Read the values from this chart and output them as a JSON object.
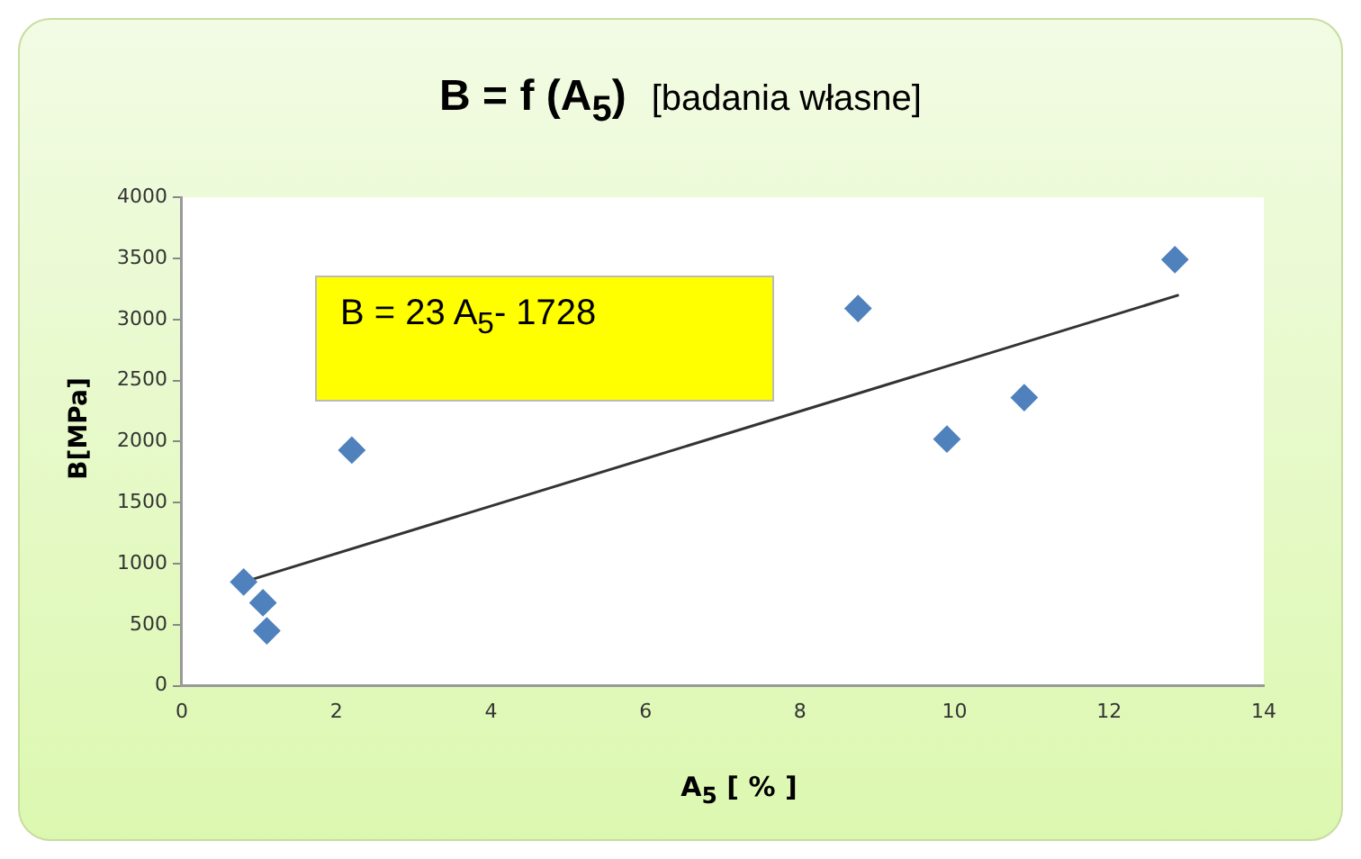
{
  "chart_data": {
    "type": "scatter",
    "title": "B = f (A$_{5}$)",
    "subtitle": "[badania własne]",
    "xlabel": "A$_{5}$ [ % ]",
    "ylabel": "B[MPa]",
    "annotations": [
      "B = 23 A$_{5}$- 1728"
    ],
    "series": [
      {
        "color": "#4f81bd",
        "marker": "diamond",
        "x": [
          0.8,
          1.05,
          1.1,
          2.2,
          8.75,
          9.9,
          10.9,
          12.85
        ],
        "values": [
          850,
          680,
          450,
          1930,
          3090,
          2020,
          2360,
          3490
        ]
      },
      {
        "type": "line",
        "color": "#333333",
        "line_style": "solid",
        "marker": "none",
        "x": [
          0.8,
          12.9
        ],
        "values": [
          850,
          3200
        ]
      }
    ],
    "xlim": [
      0,
      14
    ],
    "xticks": [
      0,
      2,
      4,
      6,
      8,
      10,
      12,
      14
    ],
    "ylim": [
      0,
      4000
    ],
    "yticks": [
      0,
      500,
      1000,
      1500,
      2000,
      2500,
      3000,
      3500,
      4000
    ],
    "grid": false,
    "legend": false
  }
}
